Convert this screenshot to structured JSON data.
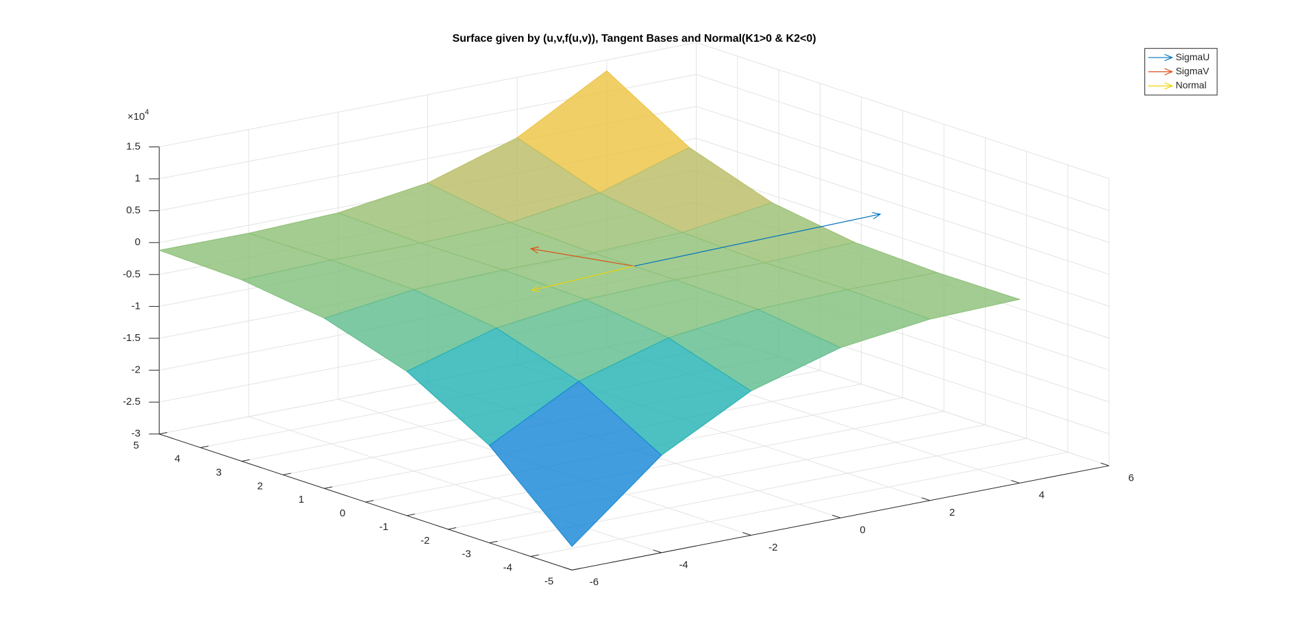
{
  "chart_data": {
    "type": "surface",
    "title": "Surface given by (u,v,f(u,v)), Tangent Bases and Normal(K1>0 & K2<0)",
    "x": [
      -6,
      -4,
      -2,
      0,
      2,
      4
    ],
    "y": [
      -5,
      -3,
      -1,
      1,
      3,
      5
    ],
    "z": [
      [
        -26300,
        -14730,
        -7385,
        -3315,
        -1570,
        -1200
      ],
      [
        -14730,
        -7385,
        -3315,
        -1570,
        -1200,
        -1254
      ],
      [
        -7385,
        -3315,
        -1570,
        -1200,
        -1254,
        -781
      ],
      [
        -3315,
        -1570,
        -1200,
        -1254,
        -781,
        1169
      ],
      [
        -1570,
        -1200,
        -1254,
        -781,
        1169,
        5546
      ],
      [
        -1200,
        -1254,
        -781,
        1169,
        5546,
        13300
      ]
    ],
    "xlim": [
      -6,
      6
    ],
    "ylim": [
      -5,
      5
    ],
    "zlim": [
      -30000,
      15000
    ],
    "xticks": [
      -6,
      -4,
      -2,
      0,
      2,
      4,
      6
    ],
    "yticks": [
      -5,
      -4,
      -3,
      -2,
      -1,
      0,
      1,
      2,
      3,
      4,
      5
    ],
    "zticks": [
      {
        "value": -30000,
        "label": "-3"
      },
      {
        "value": -25000,
        "label": "-2.5"
      },
      {
        "value": -20000,
        "label": "-2"
      },
      {
        "value": -15000,
        "label": "-1.5"
      },
      {
        "value": -10000,
        "label": "-1"
      },
      {
        "value": -5000,
        "label": "-0.5"
      },
      0,
      {
        "value": 5000,
        "label": "0.5"
      },
      {
        "value": 10000,
        "label": "1"
      },
      {
        "value": 15000,
        "label": "1.5"
      }
    ],
    "z_multiplier": {
      "base": "×10",
      "exponent": "4"
    },
    "colormap": [
      "#352a87",
      "#0f5cdd",
      "#1481d6",
      "#06a4ca",
      "#2eb7a4",
      "#87bf77",
      "#d1bb59",
      "#fec832",
      "#f9fb0e"
    ],
    "grid": true,
    "legend": "northeast",
    "vectors": [
      {
        "name": "SigmaU",
        "color": "#0072bd",
        "origin": [
          0,
          0,
          -1200
        ],
        "vector": [
          5.5,
          0,
          650
        ]
      },
      {
        "name": "SigmaV",
        "color": "#d95319",
        "origin": [
          0,
          0,
          -1200
        ],
        "vector": [
          0,
          2.5,
          -2600
        ]
      },
      {
        "name": "Normal",
        "color": "#edd400",
        "origin": [
          0,
          0,
          -1200
        ],
        "vector": [
          -2.47,
          -0.2,
          0
        ]
      }
    ]
  }
}
